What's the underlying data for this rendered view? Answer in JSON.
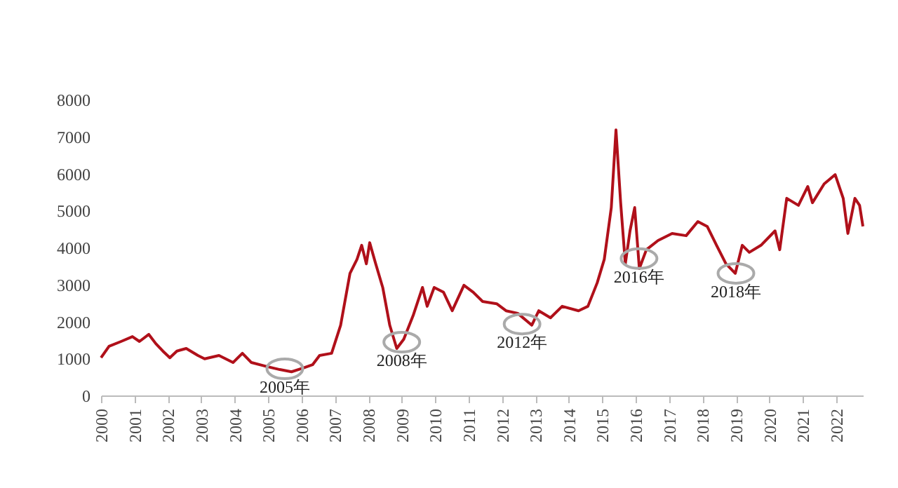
{
  "chart_data": {
    "type": "line",
    "x": [
      2000.0,
      2000.24,
      2000.6,
      2000.94,
      2001.15,
      2001.43,
      2001.64,
      2001.85,
      2002.06,
      2002.27,
      2002.55,
      2002.9,
      2003.1,
      2003.53,
      2003.95,
      2004.23,
      2004.5,
      2004.93,
      2005.35,
      2005.7,
      2006.05,
      2006.33,
      2006.54,
      2006.9,
      2007.17,
      2007.45,
      2007.66,
      2007.8,
      2007.94,
      2008.04,
      2008.22,
      2008.43,
      2008.64,
      2008.85,
      2009.06,
      2009.34,
      2009.62,
      2009.76,
      2009.97,
      2010.25,
      2010.51,
      2010.86,
      2011.14,
      2011.42,
      2011.84,
      2012.12,
      2012.47,
      2012.89,
      2013.1,
      2013.45,
      2013.8,
      2014.29,
      2014.57,
      2014.85,
      2015.06,
      2015.27,
      2015.41,
      2015.55,
      2015.69,
      2015.83,
      2015.97,
      2016.11,
      2016.32,
      2016.67,
      2017.09,
      2017.51,
      2017.86,
      2018.14,
      2018.42,
      2018.7,
      2018.98,
      2019.19,
      2019.4,
      2019.75,
      2020.17,
      2020.31,
      2020.52,
      2020.87,
      2021.15,
      2021.29,
      2021.64,
      2021.97,
      2022.21,
      2022.35,
      2022.56,
      2022.7,
      2022.8
    ],
    "series": [
      {
        "color": "#b0101a",
        "values": [
          1020,
          1330,
          1460,
          1590,
          1460,
          1650,
          1400,
          1200,
          1020,
          1200,
          1270,
          1080,
          990,
          1080,
          890,
          1140,
          890,
          790,
          700,
          640,
          740,
          830,
          1080,
          1140,
          1900,
          3300,
          3680,
          4060,
          3560,
          4130,
          3560,
          2920,
          1900,
          1270,
          1520,
          2160,
          2920,
          2410,
          2920,
          2790,
          2290,
          2980,
          2790,
          2540,
          2480,
          2290,
          2220,
          1900,
          2290,
          2100,
          2410,
          2290,
          2410,
          3050,
          3680,
          5080,
          7180,
          5210,
          3560,
          4450,
          5080,
          3430,
          3940,
          4190,
          4380,
          4320,
          4700,
          4570,
          4060,
          3560,
          3300,
          4060,
          3870,
          4060,
          4450,
          3940,
          5330,
          5140,
          5650,
          5210,
          5720,
          5970,
          5330,
          4380,
          5330,
          5140,
          4570
        ]
      }
    ],
    "xlim": [
      2000,
      2022.8
    ],
    "xticks": [
      2000,
      2001,
      2002,
      2003,
      2004,
      2005,
      2006,
      2007,
      2008,
      2009,
      2010,
      2011,
      2012,
      2013,
      2014,
      2015,
      2016,
      2017,
      2018,
      2019,
      2020,
      2021,
      2022
    ],
    "ylim": [
      0,
      8000
    ],
    "yticks": [
      0,
      1000,
      2000,
      3000,
      4000,
      5000,
      6000,
      7000,
      8000
    ],
    "grid": false,
    "legend": false,
    "marker": "none",
    "line_style": "solid",
    "annotations": [
      {
        "text": "2005年",
        "x": 2005.5,
        "y": 720
      },
      {
        "text": "2008年",
        "x": 2009.0,
        "y": 1440
      },
      {
        "text": "2012年",
        "x": 2012.6,
        "y": 1930
      },
      {
        "text": "2016年",
        "x": 2016.1,
        "y": 3700
      },
      {
        "text": "2018年",
        "x": 2019.0,
        "y": 3300
      }
    ]
  }
}
